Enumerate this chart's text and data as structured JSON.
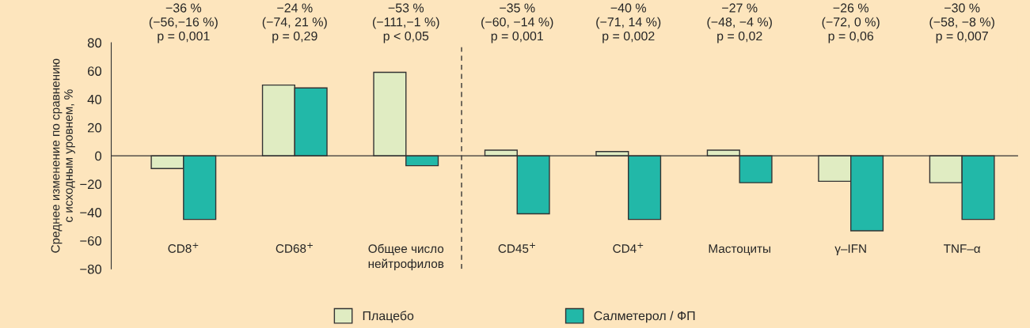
{
  "chart_data": {
    "type": "bar",
    "ylabel": "Среднее изменение по сравнению\nс исходным уровнем, %",
    "categories": [
      "CD8$^{+}$",
      "CD68$^{+}$",
      "Общее число\nнейтрофилов",
      "CD45$^{+}$",
      "CD4$^{+}$",
      "Мастоциты",
      "γ–IFN",
      "TNF–α"
    ],
    "series": [
      {
        "name": "Плацебо",
        "color": "#e0ecc2",
        "values": [
          -9,
          50,
          59,
          4,
          3,
          4,
          -18,
          -19
        ]
      },
      {
        "name": "Салметерол / ФП",
        "color": "#22b8a8",
        "values": [
          -45,
          48,
          -7,
          -41,
          -45,
          -19,
          -53,
          -45
        ]
      }
    ],
    "ylim": [
      -80,
      80
    ],
    "yticks": [
      {
        "value": -80,
        "label": "−80"
      },
      {
        "value": -60,
        "label": "−60"
      },
      {
        "value": -40,
        "label": "−40"
      },
      {
        "value": -20,
        "label": "−20"
      },
      0,
      20,
      40,
      60,
      80
    ],
    "annotations": [
      "−36 %\n(−56,−16 %)\np = 0,001",
      "−24 %\n(−74, 21 %)\np = 0,29",
      "−53 %\n(−111,−1 %)\np < 0,05",
      "−35 %\n(−60, −14 %)\np = 0,001",
      "−40 %\n(−71, 14 %)\np = 0,002",
      "−27 %\n(−48, −4 %)\np = 0,02",
      "−26 %\n(−72, 0 %)\np = 0,06",
      "−30 %\n(−58, −8 %)\np = 0,007"
    ],
    "legend": "bottom"
  }
}
